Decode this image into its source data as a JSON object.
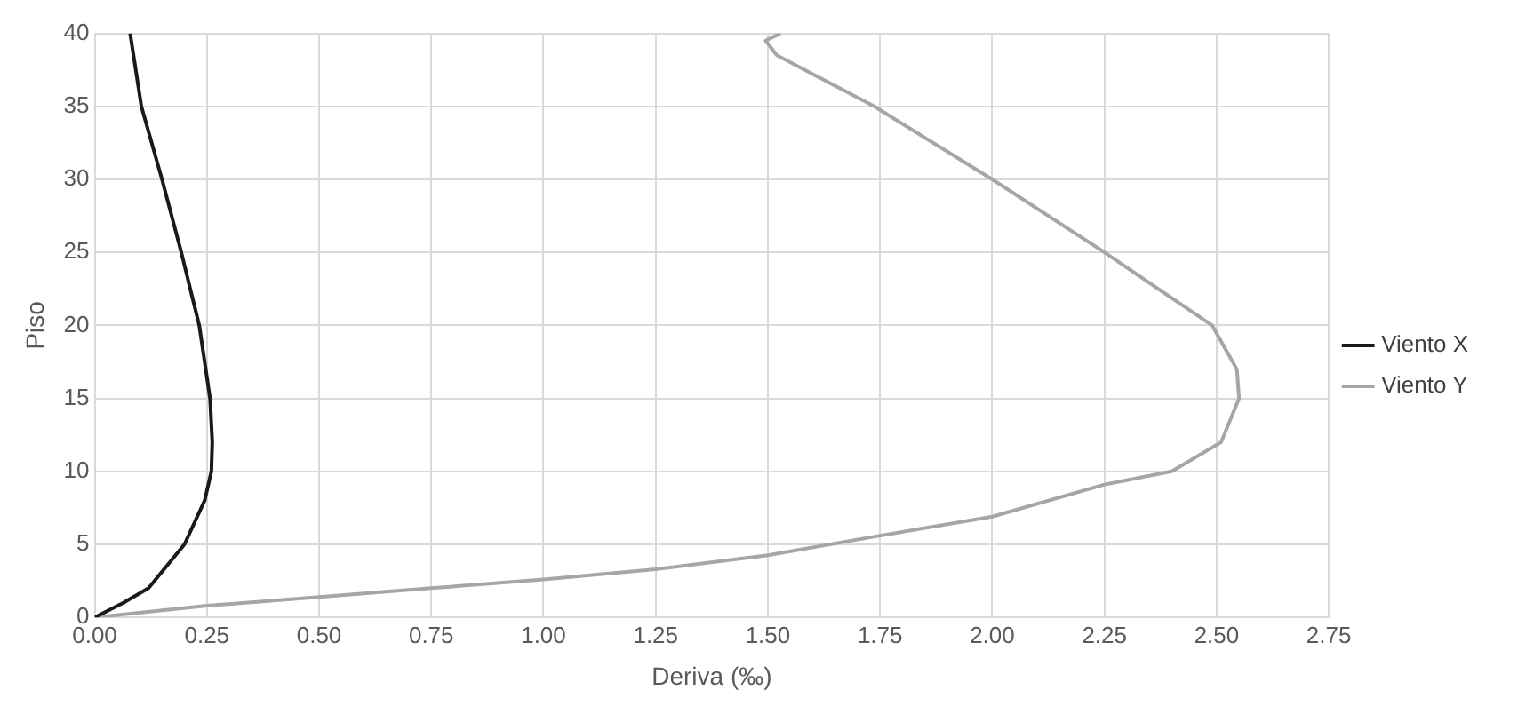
{
  "chart_data": {
    "type": "line",
    "xlabel": "Deriva (‰)",
    "ylabel": "Piso",
    "xlim": [
      0,
      2.75
    ],
    "xticks": [
      {
        "value": 0,
        "label": "0.00"
      },
      {
        "value": 0.25,
        "label": "0.25"
      },
      {
        "value": 0.5,
        "label": "0.50"
      },
      {
        "value": 0.75,
        "label": "0.75"
      },
      {
        "value": 1,
        "label": "1.00"
      },
      {
        "value": 1.25,
        "label": "1.25"
      },
      {
        "value": 1.5,
        "label": "1.50"
      },
      {
        "value": 1.75,
        "label": "1.75"
      },
      {
        "value": 2,
        "label": "2.00"
      },
      {
        "value": 2.25,
        "label": "2.25"
      },
      {
        "value": 2.5,
        "label": "2.50"
      },
      {
        "value": 2.75,
        "label": "2.75"
      }
    ],
    "ylim": [
      0,
      40
    ],
    "yticks": [
      0,
      5,
      10,
      15,
      20,
      25,
      30,
      35,
      40
    ],
    "grid": true,
    "legend": "right",
    "marker": "none",
    "line_style": "solid",
    "series": [
      {
        "name": "Viento X",
        "color": "#1a1a1a",
        "x": [
          0,
          0.064,
          0.12,
          0.2,
          0.245,
          0.26,
          0.262,
          0.257,
          0.233,
          0.193,
          0.15,
          0.104,
          0.079
        ],
        "values": [
          0,
          1,
          2,
          5,
          8,
          10,
          12,
          15,
          20,
          25,
          30,
          35,
          40
        ]
      },
      {
        "name": "Viento Y",
        "color": "#a6a6a6",
        "x": [
          0,
          0.25,
          0.5,
          0.75,
          1.0,
          1.25,
          1.5,
          1.75,
          2.0,
          2.25,
          2.4,
          2.51,
          2.55,
          2.545,
          2.49,
          2.25,
          2.0,
          1.737,
          1.52,
          1.495,
          1.528
        ],
        "values": [
          0,
          0.8,
          1.4,
          2.0,
          2.6,
          3.3,
          4.25,
          5.6,
          6.9,
          9.1,
          10,
          12,
          15,
          17,
          20,
          25,
          30,
          35,
          38.5,
          39.5,
          40
        ]
      }
    ]
  }
}
